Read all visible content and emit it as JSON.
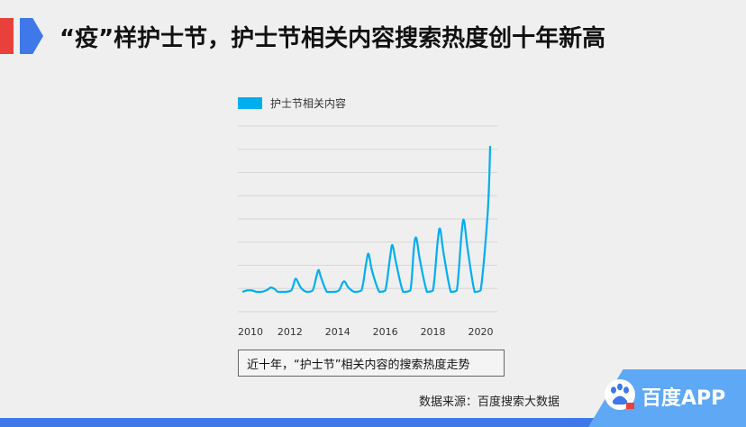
{
  "header": {
    "title": "“疫”样护士节，护士节相关内容搜索热度创十年新高"
  },
  "caption": "近十年，“护士节”相关内容的搜索热度走势",
  "source": "数据来源：百度搜索大数据",
  "brand": {
    "app_name": "百度APP",
    "icon": "baidu-paw-icon"
  },
  "colors": {
    "red": "#e8413b",
    "blue": "#3f78e8",
    "line": "#00aeef",
    "badge": "#5fa8f5"
  },
  "chart_data": {
    "type": "line",
    "title": "",
    "xlabel": "",
    "ylabel": "",
    "x_tick_labels": [
      "2010",
      "2012",
      "2014",
      "2016",
      "2018",
      "2020"
    ],
    "x_range": [
      2010,
      2020.4
    ],
    "y_range": [
      0,
      100
    ],
    "grid": true,
    "legend_position": "top-left",
    "series": [
      {
        "name": "护士节相关内容",
        "x": [
          2010.0,
          2010.2,
          2010.4,
          2010.6,
          2010.8,
          2011.0,
          2011.1,
          2011.2,
          2011.35,
          2011.5,
          2011.8,
          2012.05,
          2012.15,
          2012.25,
          2012.45,
          2012.7,
          2012.95,
          2013.1,
          2013.2,
          2013.3,
          2013.55,
          2013.8,
          2014.05,
          2014.2,
          2014.3,
          2014.45,
          2014.7,
          2015.0,
          2015.2,
          2015.3,
          2015.45,
          2015.75,
          2016.0,
          2016.2,
          2016.3,
          2016.45,
          2016.75,
          2017.05,
          2017.2,
          2017.3,
          2017.45,
          2017.75,
          2018.0,
          2018.2,
          2018.3,
          2018.45,
          2018.75,
          2019.0,
          2019.2,
          2019.3,
          2019.45,
          2019.75,
          2020.0,
          2020.3,
          2020.4
        ],
        "values": [
          0,
          1,
          1,
          0,
          0,
          1,
          2,
          3,
          2,
          0,
          0,
          1,
          5,
          9,
          3,
          0,
          1,
          10,
          15,
          10,
          0,
          0,
          1,
          6,
          7,
          3,
          0,
          1,
          20,
          26,
          14,
          0,
          1,
          24,
          32,
          20,
          0,
          1,
          30,
          37,
          22,
          0,
          1,
          35,
          43,
          26,
          0,
          1,
          40,
          49,
          30,
          0,
          1,
          55,
          100
        ]
      }
    ]
  }
}
